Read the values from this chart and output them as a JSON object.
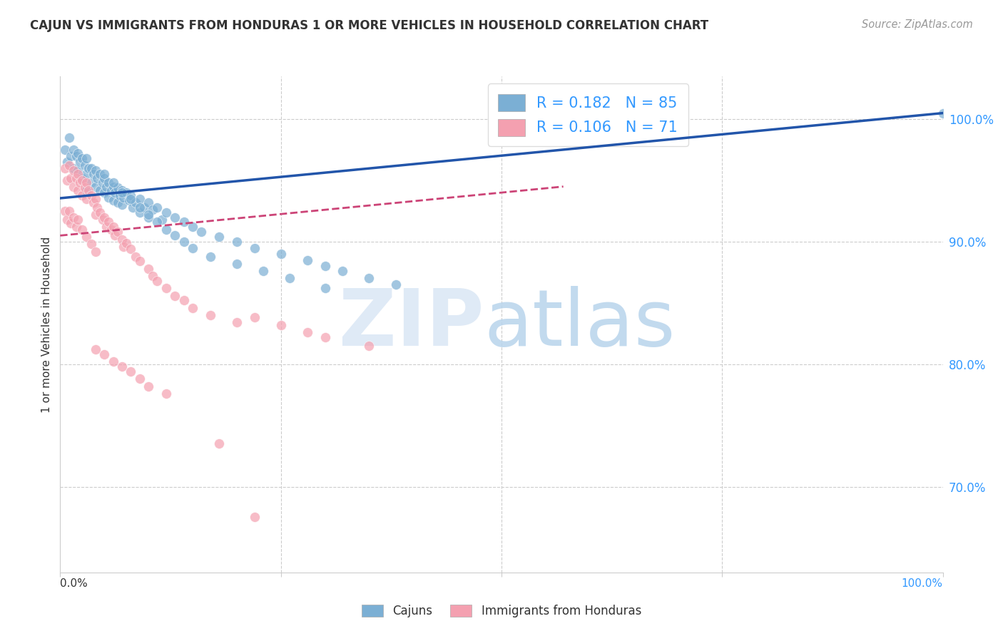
{
  "title": "CAJUN VS IMMIGRANTS FROM HONDURAS 1 OR MORE VEHICLES IN HOUSEHOLD CORRELATION CHART",
  "source": "Source: ZipAtlas.com",
  "ylabel": "1 or more Vehicles in Household",
  "legend_label1": "Cajuns",
  "legend_label2": "Immigrants from Honduras",
  "R1": 0.182,
  "N1": 85,
  "R2": 0.106,
  "N2": 71,
  "color_blue": "#7BAFD4",
  "color_pink": "#F4A0B0",
  "color_line_blue": "#2255AA",
  "color_line_pink": "#CC4477",
  "color_right_labels": "#3399FF",
  "color_title": "#333333",
  "color_source": "#999999",
  "color_grid": "#CCCCCC",
  "xmin": 0.0,
  "xmax": 1.0,
  "ymin": 0.63,
  "ymax": 1.035,
  "yticks": [
    0.7,
    0.8,
    0.9,
    1.0
  ],
  "ytick_labels": [
    "70.0%",
    "80.0%",
    "90.0%",
    "100.0%"
  ],
  "xtick_positions": [
    0.0,
    0.25,
    0.5,
    0.75,
    1.0
  ],
  "blue_line_x": [
    0.0,
    1.0
  ],
  "blue_line_y": [
    0.9355,
    1.005
  ],
  "pink_line_x": [
    0.0,
    0.57
  ],
  "pink_line_y": [
    0.905,
    0.945
  ],
  "blue_x": [
    0.005,
    0.008,
    0.01,
    0.012,
    0.015,
    0.015,
    0.018,
    0.02,
    0.02,
    0.022,
    0.025,
    0.025,
    0.028,
    0.03,
    0.03,
    0.03,
    0.032,
    0.035,
    0.035,
    0.038,
    0.04,
    0.04,
    0.042,
    0.045,
    0.045,
    0.048,
    0.05,
    0.05,
    0.052,
    0.055,
    0.055,
    0.058,
    0.06,
    0.06,
    0.062,
    0.065,
    0.065,
    0.068,
    0.07,
    0.07,
    0.072,
    0.075,
    0.078,
    0.08,
    0.082,
    0.085,
    0.09,
    0.09,
    0.095,
    0.1,
    0.1,
    0.105,
    0.11,
    0.115,
    0.12,
    0.13,
    0.14,
    0.15,
    0.16,
    0.18,
    0.2,
    0.22,
    0.25,
    0.28,
    0.3,
    0.32,
    0.35,
    0.38,
    0.05,
    0.06,
    0.07,
    0.08,
    0.09,
    0.1,
    0.11,
    0.12,
    0.13,
    0.14,
    0.15,
    0.17,
    0.2,
    0.23,
    0.26,
    0.3,
    1.0
  ],
  "blue_y": [
    0.975,
    0.965,
    0.985,
    0.97,
    0.975,
    0.96,
    0.97,
    0.972,
    0.958,
    0.965,
    0.968,
    0.952,
    0.962,
    0.968,
    0.955,
    0.942,
    0.96,
    0.96,
    0.948,
    0.955,
    0.958,
    0.945,
    0.952,
    0.955,
    0.942,
    0.948,
    0.952,
    0.94,
    0.945,
    0.948,
    0.936,
    0.942,
    0.945,
    0.934,
    0.94,
    0.944,
    0.932,
    0.938,
    0.942,
    0.93,
    0.936,
    0.94,
    0.934,
    0.938,
    0.928,
    0.932,
    0.935,
    0.924,
    0.928,
    0.932,
    0.92,
    0.926,
    0.928,
    0.918,
    0.924,
    0.92,
    0.916,
    0.912,
    0.908,
    0.904,
    0.9,
    0.895,
    0.89,
    0.885,
    0.88,
    0.876,
    0.87,
    0.865,
    0.955,
    0.948,
    0.94,
    0.935,
    0.928,
    0.922,
    0.916,
    0.91,
    0.905,
    0.9,
    0.895,
    0.888,
    0.882,
    0.876,
    0.87,
    0.862,
    1.005
  ],
  "pink_x": [
    0.005,
    0.008,
    0.01,
    0.012,
    0.015,
    0.015,
    0.018,
    0.02,
    0.02,
    0.022,
    0.025,
    0.025,
    0.028,
    0.03,
    0.03,
    0.032,
    0.035,
    0.038,
    0.04,
    0.04,
    0.042,
    0.045,
    0.048,
    0.05,
    0.052,
    0.055,
    0.058,
    0.06,
    0.062,
    0.065,
    0.07,
    0.072,
    0.075,
    0.08,
    0.085,
    0.09,
    0.1,
    0.105,
    0.11,
    0.12,
    0.13,
    0.14,
    0.15,
    0.17,
    0.2,
    0.22,
    0.25,
    0.28,
    0.3,
    0.35,
    0.04,
    0.05,
    0.06,
    0.07,
    0.08,
    0.09,
    0.1,
    0.12,
    0.005,
    0.008,
    0.01,
    0.012,
    0.015,
    0.018,
    0.02,
    0.025,
    0.03,
    0.035,
    0.04,
    0.18,
    0.22
  ],
  "pink_y": [
    0.96,
    0.95,
    0.962,
    0.952,
    0.958,
    0.945,
    0.952,
    0.955,
    0.942,
    0.948,
    0.95,
    0.938,
    0.944,
    0.948,
    0.935,
    0.942,
    0.938,
    0.932,
    0.935,
    0.922,
    0.928,
    0.924,
    0.918,
    0.92,
    0.912,
    0.916,
    0.91,
    0.912,
    0.905,
    0.908,
    0.902,
    0.896,
    0.899,
    0.894,
    0.888,
    0.884,
    0.878,
    0.872,
    0.868,
    0.862,
    0.856,
    0.852,
    0.846,
    0.84,
    0.834,
    0.838,
    0.832,
    0.826,
    0.822,
    0.815,
    0.812,
    0.808,
    0.802,
    0.798,
    0.794,
    0.788,
    0.782,
    0.776,
    0.925,
    0.918,
    0.925,
    0.915,
    0.92,
    0.912,
    0.918,
    0.91,
    0.904,
    0.898,
    0.892,
    0.735,
    0.675
  ]
}
